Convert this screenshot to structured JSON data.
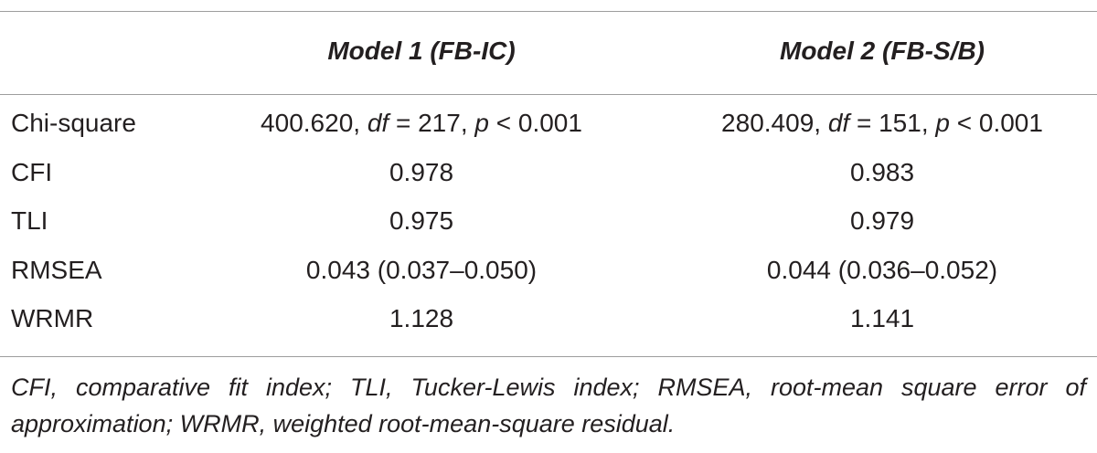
{
  "table": {
    "header": [
      "Model 1 (FB-IC)",
      "Model 2 (FB-S/B)"
    ],
    "rows": [
      [
        "Chi-square",
        [
          {
            "text": "400.620, "
          },
          {
            "text": "df",
            "italic": true
          },
          {
            "text": " = 217, "
          },
          {
            "text": "p",
            "italic": true
          },
          {
            "text": " < 0.001"
          }
        ],
        [
          {
            "text": "280.409, "
          },
          {
            "text": "df",
            "italic": true
          },
          {
            "text": " = 151, "
          },
          {
            "text": "p",
            "italic": true
          },
          {
            "text": " < 0.001"
          }
        ]
      ],
      [
        "CFI",
        "0.978",
        "0.983"
      ],
      [
        "TLI",
        "0.975",
        "0.979"
      ],
      [
        "RMSEA",
        "0.043 (0.037–0.050)",
        "0.044 (0.036–0.052)"
      ],
      [
        "WRMR",
        "1.128",
        "1.141"
      ]
    ],
    "footnote": "CFI, comparative fit index; TLI, Tucker-Lewis index; RMSEA, root-mean square error of approximation; WRMR, weighted root-mean-square residual."
  }
}
